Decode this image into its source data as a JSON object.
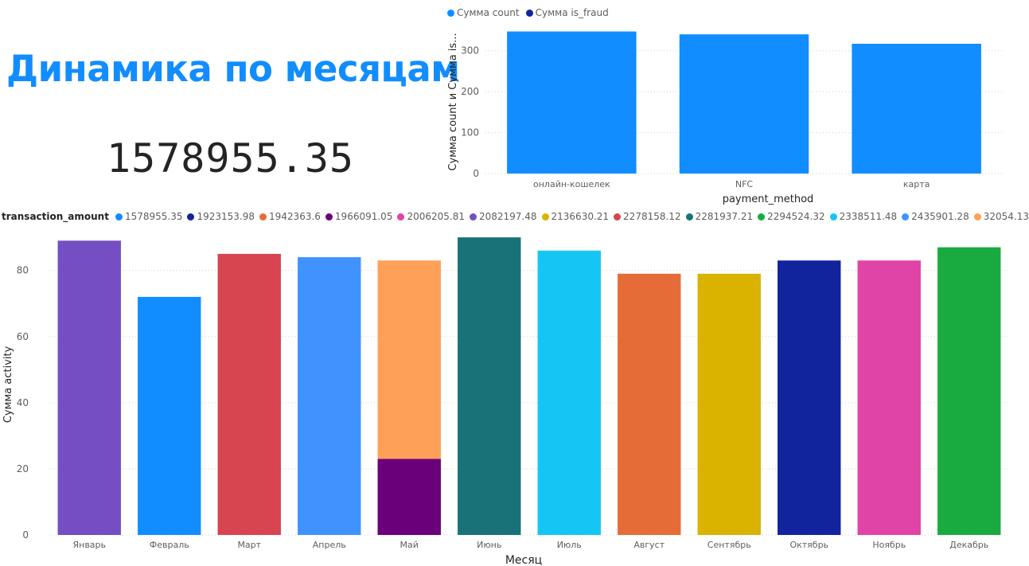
{
  "page": {
    "title": "Динамика по месяцам",
    "kpi_value": "1578955.35"
  },
  "chart_data": [
    {
      "type": "bar",
      "ylabel": "Сумма count и Сумма is...",
      "xlabel": "payment_method",
      "categories": [
        "онлайн-кошелек",
        "NFC",
        "карта"
      ],
      "series": [
        {
          "name": "Сумма count",
          "color": "#118dff",
          "values": [
            347,
            340,
            317
          ]
        },
        {
          "name": "Сумма is_fraud",
          "color": "#12239e",
          "values": [
            0,
            0,
            0
          ]
        }
      ],
      "ylim": [
        0,
        350
      ],
      "yticks": [
        "0",
        "100",
        "200",
        "300"
      ],
      "legend": "top-left",
      "grid": true
    },
    {
      "type": "bar",
      "stacked": true,
      "legend_title": "transaction_amount",
      "ylabel": "Сумма activity",
      "xlabel": "Месяц",
      "ylim": [
        0,
        91
      ],
      "yticks": [
        "0",
        "20",
        "40",
        "60",
        "80"
      ],
      "legend": "top-left",
      "grid": true,
      "legend_entries": [
        {
          "name": "1578955.35",
          "color": "#118dff"
        },
        {
          "name": "1923153.98",
          "color": "#12239e"
        },
        {
          "name": "1942363.6",
          "color": "#e66c37"
        },
        {
          "name": "1966091.05",
          "color": "#6b007b"
        },
        {
          "name": "2006205.81",
          "color": "#e044a7"
        },
        {
          "name": "2082197.48",
          "color": "#744ec2"
        },
        {
          "name": "2136630.21",
          "color": "#d9b300"
        },
        {
          "name": "2278158.12",
          "color": "#d64550"
        },
        {
          "name": "2281937.21",
          "color": "#197278"
        },
        {
          "name": "2294524.32",
          "color": "#1aab40"
        },
        {
          "name": "2338511.48",
          "color": "#15c6f4"
        },
        {
          "name": "2435901.28",
          "color": "#4092ff"
        },
        {
          "name": "32054.13",
          "color": "#ffa058"
        }
      ],
      "categories": [
        "Январь",
        "Февраль",
        "Март",
        "Апрель",
        "Май",
        "Июнь",
        "Июль",
        "Август",
        "Сентябрь",
        "Октябрь",
        "Ноябрь",
        "Декабрь"
      ],
      "bars": [
        [
          {
            "series": "2082197.48",
            "value": 89
          }
        ],
        [
          {
            "series": "1578955.35",
            "value": 72
          }
        ],
        [
          {
            "series": "2278158.12",
            "value": 85
          }
        ],
        [
          {
            "series": "2435901.28",
            "value": 84
          }
        ],
        [
          {
            "series": "1966091.05",
            "value": 23
          },
          {
            "series": "32054.13",
            "value": 60
          }
        ],
        [
          {
            "series": "2281937.21",
            "value": 90
          }
        ],
        [
          {
            "series": "2338511.48",
            "value": 86
          }
        ],
        [
          {
            "series": "1942363.6",
            "value": 79
          }
        ],
        [
          {
            "series": "2136630.21",
            "value": 79
          }
        ],
        [
          {
            "series": "1923153.98",
            "value": 83
          }
        ],
        [
          {
            "series": "2006205.81",
            "value": 83
          }
        ],
        [
          {
            "series": "2294524.32",
            "value": 87
          }
        ]
      ]
    }
  ]
}
